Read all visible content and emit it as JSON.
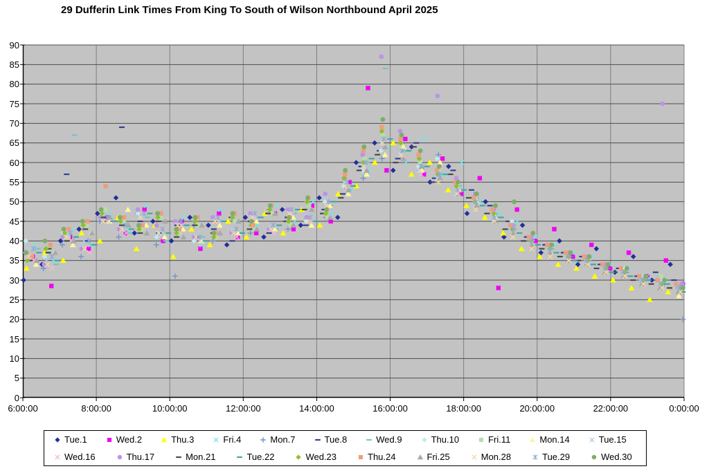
{
  "title": "29 Dufferin Link Times From King To South of Wilson Northbound April 2025",
  "chart_data": {
    "type": "scatter",
    "title": "29 Dufferin Link Times From King To South of Wilson Northbound April 2025",
    "xlabel": "",
    "ylabel": "",
    "x_range_hours": [
      6,
      24
    ],
    "ylim": [
      0,
      90
    ],
    "y_step": 5,
    "grid": "both",
    "legend_position": "bottom",
    "colors": {
      "plot_bg": "#C3C3C3",
      "h_gridline": "#4D4D4D",
      "v_gridline": "#7F7F7F",
      "axis": "#000000",
      "page_bg": "#FFFFFF",
      "legend_border": "#000000"
    },
    "y_ticks": [
      0,
      5,
      10,
      15,
      20,
      25,
      30,
      35,
      40,
      45,
      50,
      55,
      60,
      65,
      70,
      75,
      80,
      85,
      90
    ],
    "x_ticks": [
      {
        "hour": 6,
        "label": "6:00:00"
      },
      {
        "hour": 8,
        "label": "8:00:00"
      },
      {
        "hour": 10,
        "label": "10:00:00"
      },
      {
        "hour": 12,
        "label": "12:00:00"
      },
      {
        "hour": 14,
        "label": "14:00:00"
      },
      {
        "hour": 16,
        "label": "16:00:00"
      },
      {
        "hour": 18,
        "label": "18:00:00"
      },
      {
        "hour": 20,
        "label": "20:00:00"
      },
      {
        "hour": 22,
        "label": "22:00:00"
      },
      {
        "hour": 24,
        "label": "0:00:00"
      }
    ],
    "legend_rows": [
      11,
      10
    ],
    "series": [
      {
        "name": "Tue.1",
        "marker": "diamond",
        "color": "#212E9B",
        "t0": 6.02,
        "dt": 0.503,
        "values": [
          30,
          34,
          40,
          43,
          47,
          51,
          42,
          45,
          40,
          46,
          44,
          39,
          46,
          41,
          48,
          44,
          51,
          46,
          60,
          65,
          58,
          64,
          55,
          59,
          47,
          50,
          41,
          44,
          37,
          40,
          34,
          38,
          32,
          36,
          30,
          34
        ]
      },
      {
        "name": "Wed.2",
        "marker": "square",
        "color": "#F200F2",
        "t0": 6.27,
        "dt": 0.507,
        "values": [
          36,
          28.5,
          41,
          38,
          46,
          42,
          48,
          40,
          45,
          38,
          47,
          41,
          42,
          47,
          43,
          49,
          45,
          55,
          79,
          58,
          66,
          57,
          61,
          52,
          56,
          28,
          48,
          40,
          43,
          36,
          39,
          33,
          37,
          31,
          35,
          29
        ]
      },
      {
        "name": "Thu.3",
        "marker": "triangle",
        "color": "#FFFF00",
        "t0": 6.1,
        "dt": 0.499,
        "values": [
          33,
          37,
          35,
          42,
          40,
          46,
          38,
          44,
          36,
          43,
          39,
          45,
          41,
          47,
          42,
          48,
          44,
          52,
          54,
          60,
          65,
          57,
          60,
          53,
          49,
          46,
          42,
          38,
          36,
          34,
          33,
          31,
          30,
          28,
          25,
          27
        ]
      },
      {
        "name": "Fri.4",
        "marker": "x",
        "color": "#7BE3E3",
        "t0": 6.33,
        "dt": 0.505,
        "values": [
          39,
          35,
          43,
          39,
          47,
          43,
          49,
          41,
          46,
          39,
          48,
          42,
          44,
          49,
          45,
          50,
          47,
          53,
          58,
          64,
          60,
          66,
          57,
          60,
          50,
          47,
          45,
          41,
          39,
          37,
          36,
          34,
          33,
          31,
          30,
          29
        ]
      },
      {
        "name": "Mon.7",
        "marker": "plus",
        "color": "#7791C8",
        "t0": 6.05,
        "dt": 0.512,
        "values": [
          37,
          33,
          39,
          36,
          45,
          41,
          47,
          39,
          31,
          44,
          40,
          46,
          42,
          48,
          43,
          50,
          46,
          54,
          56,
          61,
          66,
          58,
          62,
          54,
          51,
          47,
          43,
          40,
          38,
          36,
          35,
          33,
          32,
          30,
          29,
          20
        ]
      },
      {
        "name": "Tue.8",
        "marker": "dash",
        "color": "#33408F",
        "t0": 6.19,
        "dt": 0.501,
        "values": [
          35,
          37,
          57,
          40,
          46,
          69,
          45,
          42,
          44,
          41,
          43,
          40,
          45,
          42,
          46,
          44,
          48,
          52,
          59,
          63,
          61,
          65,
          56,
          58,
          53,
          49,
          45,
          41,
          39,
          37,
          36,
          34,
          33,
          31,
          32,
          30
        ]
      },
      {
        "name": "Wed.9",
        "marker": "dash",
        "color": "#6FC7C9",
        "t0": 6.41,
        "dt": 0.498,
        "values": [
          38,
          34,
          67,
          39,
          45,
          42,
          46,
          40,
          44,
          41,
          45,
          42,
          46,
          43,
          47,
          45,
          49,
          53,
          60,
          84,
          63,
          59,
          57,
          54,
          50,
          46,
          44,
          40,
          38,
          36,
          35,
          33,
          32,
          30,
          31,
          28
        ]
      },
      {
        "name": "Thu.10",
        "marker": "diamond",
        "color": "#BEECEC",
        "t0": 6.08,
        "dt": 0.509,
        "values": [
          40,
          36,
          42,
          38,
          46,
          43,
          47,
          41,
          45,
          40,
          46,
          42,
          47,
          43,
          48,
          45,
          50,
          54,
          58,
          63,
          66,
          59,
          61,
          55,
          52,
          48,
          45,
          41,
          39,
          37,
          36,
          34,
          33,
          31,
          30,
          29
        ]
      },
      {
        "name": "Fri.11",
        "marker": "square",
        "color": "#B4DFA8",
        "t0": 6.23,
        "dt": 0.504,
        "values": [
          36,
          38,
          41,
          44,
          48,
          45,
          43,
          46,
          42,
          44,
          41,
          45,
          43,
          47,
          44,
          49,
          46,
          55,
          61,
          67,
          64,
          60,
          58,
          54,
          51,
          47,
          43,
          41,
          38,
          36,
          35,
          33,
          32,
          30,
          31,
          28
        ]
      },
      {
        "name": "Mon.14",
        "marker": "triangle",
        "color": "#FBF7A3",
        "t0": 6.36,
        "dt": 0.5,
        "values": [
          34,
          37,
          39,
          42,
          45,
          48,
          44,
          41,
          43,
          40,
          44,
          42,
          45,
          43,
          46,
          44,
          49,
          52,
          57,
          62,
          64,
          58,
          60,
          53,
          50,
          46,
          42,
          39,
          37,
          35,
          34,
          32,
          31,
          29,
          28,
          26
        ]
      },
      {
        "name": "Tue.15",
        "marker": "x",
        "color": "#AFCDE8",
        "t0": 6.14,
        "dt": 0.506,
        "values": [
          38,
          35,
          42,
          40,
          47,
          44,
          46,
          42,
          45,
          41,
          46,
          43,
          47,
          44,
          48,
          46,
          51,
          55,
          59,
          65,
          62,
          58,
          56,
          52,
          49,
          45,
          43,
          40,
          38,
          36,
          35,
          33,
          32,
          31,
          30,
          28
        ]
      },
      {
        "name": "Wed.16",
        "marker": "x",
        "color": "#F2BBD4",
        "t0": 6.3,
        "dt": 0.502,
        "values": [
          35,
          33,
          40,
          37,
          45,
          42,
          47,
          43,
          44,
          40,
          45,
          41,
          46,
          42,
          47,
          45,
          50,
          53,
          58,
          64,
          61,
          57,
          59,
          53,
          50,
          46,
          42,
          39,
          37,
          35,
          34,
          32,
          31,
          29,
          28,
          27
        ]
      },
      {
        "name": "Thu.17",
        "marker": "circle",
        "color": "#BE93E6",
        "t0": 6.07,
        "dt": 0.51,
        "values": [
          37,
          34,
          41,
          38,
          46,
          43,
          48,
          44,
          45,
          41,
          46,
          42,
          47,
          43,
          48,
          46,
          52,
          56,
          62,
          87,
          68,
          62,
          77,
          56,
          52,
          48,
          44,
          41,
          39,
          37,
          36,
          34,
          32,
          30,
          75,
          29
        ]
      },
      {
        "name": "Mon.21",
        "marker": "dash",
        "color": "#4A4A4A",
        "t0": 6.21,
        "dt": 0.497,
        "values": [
          36,
          38,
          40,
          43,
          46,
          44,
          42,
          45,
          41,
          44,
          42,
          46,
          43,
          47,
          45,
          48,
          47,
          51,
          58,
          62,
          60,
          64,
          55,
          57,
          51,
          47,
          43,
          40,
          38,
          36,
          35,
          33,
          32,
          30,
          29,
          28
        ]
      },
      {
        "name": "Tue.22",
        "marker": "dash",
        "color": "#3FA8A5",
        "t0": 6.44,
        "dt": 0.503,
        "values": [
          37,
          35,
          41,
          39,
          45,
          43,
          47,
          42,
          44,
          40,
          45,
          42,
          46,
          44,
          48,
          45,
          50,
          54,
          61,
          66,
          63,
          59,
          57,
          53,
          49,
          46,
          42,
          39,
          37,
          35,
          34,
          32,
          31,
          30,
          29,
          27
        ]
      },
      {
        "name": "Wed.23",
        "marker": "diamond",
        "color": "#90BE28",
        "t0": 6.12,
        "dt": 0.508,
        "values": [
          35,
          38,
          42,
          44,
          47,
          45,
          43,
          46,
          42,
          45,
          41,
          46,
          44,
          48,
          45,
          50,
          47,
          56,
          60,
          68,
          65,
          61,
          57,
          54,
          50,
          47,
          43,
          40,
          38,
          36,
          35,
          33,
          32,
          30,
          29,
          28
        ]
      },
      {
        "name": "Thu.24",
        "marker": "square",
        "color": "#F09C7E",
        "t0": 6.25,
        "dt": 0.501,
        "values": [
          36,
          39,
          43,
          45,
          54,
          46,
          44,
          47,
          43,
          46,
          42,
          47,
          44,
          49,
          46,
          51,
          48,
          57,
          63,
          69,
          66,
          62,
          58,
          55,
          51,
          48,
          44,
          41,
          39,
          37,
          36,
          34,
          33,
          31,
          30,
          29
        ]
      },
      {
        "name": "Fri.25",
        "marker": "triangle",
        "color": "#A8A8A8",
        "t0": 6.38,
        "dt": 0.499,
        "values": [
          35,
          37,
          40,
          42,
          46,
          44,
          42,
          45,
          41,
          44,
          42,
          45,
          43,
          47,
          44,
          48,
          46,
          53,
          58,
          64,
          61,
          59,
          56,
          52,
          49,
          45,
          42,
          39,
          37,
          35,
          34,
          32,
          31,
          29,
          28,
          27
        ]
      },
      {
        "name": "Mon.28",
        "marker": "x",
        "color": "#F5D9A6",
        "t0": 6.16,
        "dt": 0.507,
        "values": [
          36,
          34,
          41,
          38,
          45,
          43,
          46,
          42,
          44,
          41,
          45,
          42,
          46,
          43,
          47,
          45,
          49,
          54,
          59,
          65,
          62,
          58,
          55,
          52,
          48,
          45,
          41,
          38,
          36,
          35,
          34,
          32,
          31,
          29,
          28,
          27
        ]
      },
      {
        "name": "Tue.29",
        "marker": "star",
        "color": "#8FAAD4",
        "t0": 6.29,
        "dt": 0.502,
        "values": [
          38,
          36,
          42,
          40,
          46,
          44,
          47,
          43,
          45,
          41,
          46,
          43,
          47,
          44,
          48,
          46,
          50,
          55,
          60,
          66,
          63,
          59,
          57,
          53,
          50,
          46,
          43,
          40,
          38,
          36,
          35,
          33,
          32,
          30,
          29,
          28
        ]
      },
      {
        "name": "Wed.30",
        "marker": "circle",
        "color": "#7FAD68",
        "t0": 6.09,
        "dt": 0.511,
        "values": [
          37,
          40,
          43,
          45,
          48,
          46,
          44,
          47,
          43,
          46,
          42,
          47,
          45,
          49,
          46,
          51,
          48,
          58,
          64,
          71,
          67,
          63,
          59,
          55,
          52,
          49,
          50,
          42,
          39,
          37,
          36,
          34,
          33,
          31,
          30,
          28
        ]
      }
    ]
  }
}
